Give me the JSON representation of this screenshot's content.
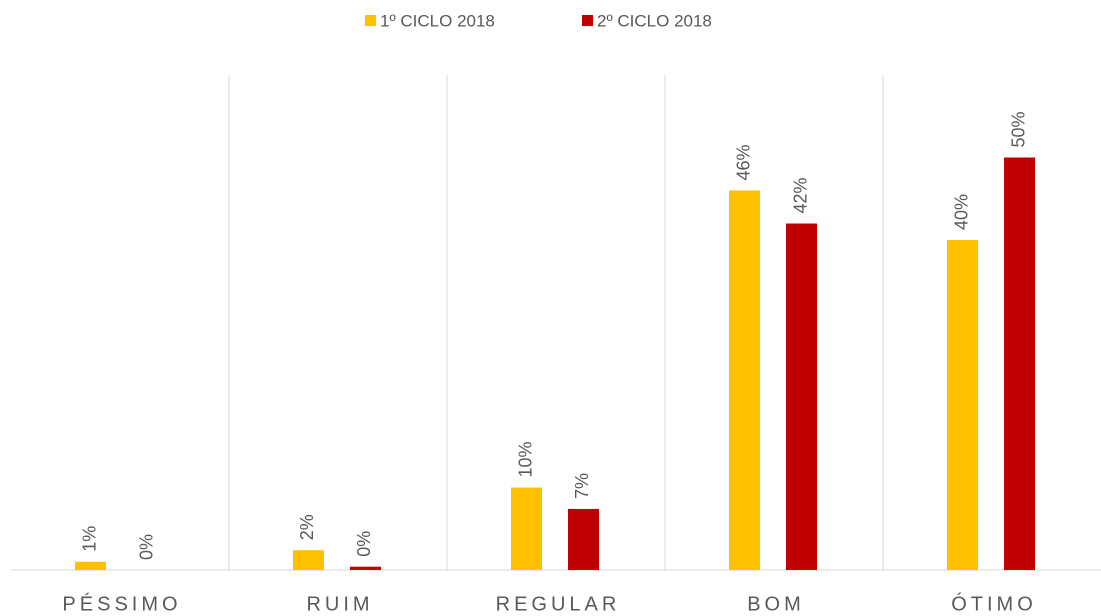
{
  "chart_data": {
    "type": "bar",
    "categories": [
      "PÉSSIMO",
      "RUIM",
      "REGULAR",
      "BOM",
      "ÓTIMO"
    ],
    "series": [
      {
        "name": "1º CICLO 2018",
        "color": "#FFC000",
        "values": [
          1,
          2.4,
          10,
          46,
          40
        ],
        "value_labels": [
          "1%",
          "2%",
          "10%",
          "46%",
          "40%"
        ]
      },
      {
        "name": "2º CICLO 2018",
        "color": "#C00000",
        "values": [
          0,
          0.4,
          7.4,
          42,
          50
        ],
        "value_labels": [
          "0%",
          "0%",
          "7%",
          "42%",
          "50%"
        ]
      }
    ],
    "ylim": [
      0,
      60
    ],
    "legend": "top"
  }
}
